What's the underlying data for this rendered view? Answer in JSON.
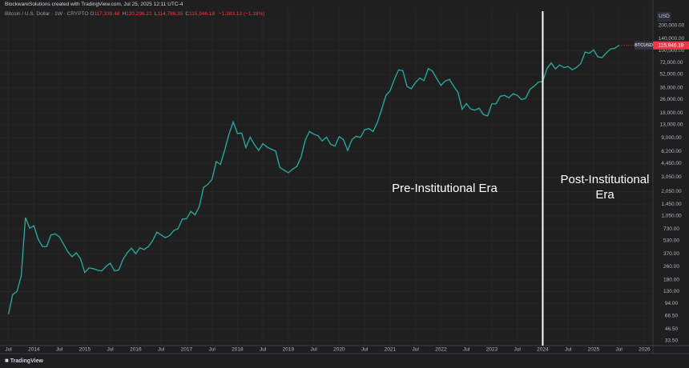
{
  "header": {
    "credit": "BlockwareSolutions created with TradingView.com, Jul 25, 2025 12:11 UTC-4",
    "symbol": "Bitcoin / U.S. Dollar · 1W · CRYPTO",
    "ohlc": [
      {
        "key": "O",
        "value": "117,339.48"
      },
      {
        "key": "H",
        "value": "120,296.21"
      },
      {
        "key": "L",
        "value": "114,786.35"
      },
      {
        "key": "C",
        "value": "115,946.18"
      }
    ],
    "change": "−1,383.13 (−1.18%)",
    "currency": "USD"
  },
  "footer": {
    "brand": "TradingView"
  },
  "chart_data": {
    "type": "line",
    "log_scale": true,
    "grid": true,
    "x": [
      "2013-07",
      "2013-08",
      "2013-09",
      "2013-10",
      "2013-11",
      "2013-12",
      "2014-01",
      "2014-02",
      "2014-03",
      "2014-04",
      "2014-05",
      "2014-06",
      "2014-07",
      "2014-08",
      "2014-09",
      "2014-10",
      "2014-11",
      "2014-12",
      "2015-01",
      "2015-02",
      "2015-03",
      "2015-04",
      "2015-05",
      "2015-06",
      "2015-07",
      "2015-08",
      "2015-09",
      "2015-10",
      "2015-11",
      "2015-12",
      "2016-01",
      "2016-02",
      "2016-03",
      "2016-04",
      "2016-05",
      "2016-06",
      "2016-07",
      "2016-08",
      "2016-09",
      "2016-10",
      "2016-11",
      "2016-12",
      "2017-01",
      "2017-02",
      "2017-03",
      "2017-04",
      "2017-05",
      "2017-06",
      "2017-07",
      "2017-08",
      "2017-09",
      "2017-10",
      "2017-11",
      "2017-12",
      "2018-01",
      "2018-02",
      "2018-03",
      "2018-04",
      "2018-05",
      "2018-06",
      "2018-07",
      "2018-08",
      "2018-09",
      "2018-10",
      "2018-11",
      "2018-12",
      "2019-01",
      "2019-02",
      "2019-03",
      "2019-04",
      "2019-05",
      "2019-06",
      "2019-07",
      "2019-08",
      "2019-09",
      "2019-10",
      "2019-11",
      "2019-12",
      "2020-01",
      "2020-02",
      "2020-03",
      "2020-04",
      "2020-05",
      "2020-06",
      "2020-07",
      "2020-08",
      "2020-09",
      "2020-10",
      "2020-11",
      "2020-12",
      "2021-01",
      "2021-02",
      "2021-03",
      "2021-04",
      "2021-05",
      "2021-06",
      "2021-07",
      "2021-08",
      "2021-09",
      "2021-10",
      "2021-11",
      "2021-12",
      "2022-01",
      "2022-02",
      "2022-03",
      "2022-04",
      "2022-05",
      "2022-06",
      "2022-07",
      "2022-08",
      "2022-09",
      "2022-10",
      "2022-11",
      "2022-12",
      "2023-01",
      "2023-02",
      "2023-03",
      "2023-04",
      "2023-05",
      "2023-06",
      "2023-07",
      "2023-08",
      "2023-09",
      "2023-10",
      "2023-11",
      "2023-12",
      "2024-01",
      "2024-02",
      "2024-03",
      "2024-04",
      "2024-05",
      "2024-06",
      "2024-07",
      "2024-08",
      "2024-09",
      "2024-10",
      "2024-11",
      "2024-12",
      "2025-01",
      "2025-02",
      "2025-03",
      "2025-04",
      "2025-05",
      "2025-06",
      "2025-07"
    ],
    "series": [
      {
        "name": "BTCUSD",
        "color": "#26a69a",
        "values": [
          70,
          120,
          130,
          200,
          1000,
          750,
          800,
          550,
          450,
          450,
          620,
          640,
          590,
          480,
          390,
          340,
          380,
          320,
          220,
          250,
          245,
          235,
          230,
          260,
          285,
          230,
          236,
          315,
          380,
          430,
          370,
          435,
          415,
          450,
          530,
          670,
          620,
          575,
          610,
          700,
          740,
          960,
          970,
          1190,
          1080,
          1350,
          2300,
          2500,
          2870,
          4700,
          4340,
          6450,
          10000,
          14000,
          10200,
          10300,
          6900,
          9200,
          7500,
          6400,
          7700,
          7000,
          6600,
          6300,
          4000,
          3700,
          3450,
          3800,
          4100,
          5300,
          8500,
          10800,
          10000,
          9600,
          8300,
          9200,
          7550,
          7200,
          9350,
          8600,
          6400,
          8600,
          9450,
          9140,
          11300,
          11650,
          10780,
          13800,
          19700,
          29000,
          33100,
          45200,
          58900,
          57700,
          37300,
          35000,
          41500,
          47100,
          43800,
          61300,
          57000,
          46300,
          38500,
          43200,
          45500,
          37700,
          31800,
          19900,
          23300,
          20000,
          19400,
          20500,
          17200,
          16500,
          23100,
          23100,
          28500,
          29200,
          27200,
          30500,
          29200,
          26000,
          27000,
          34500,
          37700,
          42300,
          42600,
          61200,
          71300,
          60700,
          67500,
          62700,
          64600,
          59000,
          63300,
          70300,
          96400,
          93400,
          102400,
          84400,
          82500,
          94200,
          104600,
          107100,
          115946.18
        ]
      }
    ],
    "last_price_label": "115,946.18",
    "xlim": [
      "2013-05",
      "2026-03"
    ],
    "ylim": [
      29.3,
      325000
    ],
    "xticks": [
      {
        "value": "2013-07",
        "label": "Jul"
      },
      {
        "value": "2014-01",
        "label": "2014"
      },
      {
        "value": "2014-07",
        "label": "Jul"
      },
      {
        "value": "2015-01",
        "label": "2015"
      },
      {
        "value": "2015-07",
        "label": "Jul"
      },
      {
        "value": "2016-01",
        "label": "2016"
      },
      {
        "value": "2016-07",
        "label": "Jul"
      },
      {
        "value": "2017-01",
        "label": "2017"
      },
      {
        "value": "2017-07",
        "label": "Jul"
      },
      {
        "value": "2018-01",
        "label": "2018"
      },
      {
        "value": "2018-07",
        "label": "Jul"
      },
      {
        "value": "2019-01",
        "label": "2019"
      },
      {
        "value": "2019-07",
        "label": "Jul"
      },
      {
        "value": "2020-01",
        "label": "2020"
      },
      {
        "value": "2020-07",
        "label": "Jul"
      },
      {
        "value": "2021-01",
        "label": "2021"
      },
      {
        "value": "2021-07",
        "label": "Jul"
      },
      {
        "value": "2022-01",
        "label": "2022"
      },
      {
        "value": "2022-07",
        "label": "Jul"
      },
      {
        "value": "2023-01",
        "label": "2023"
      },
      {
        "value": "2023-07",
        "label": "Jul"
      },
      {
        "value": "2024-01",
        "label": "2024"
      },
      {
        "value": "2024-07",
        "label": "Jul"
      },
      {
        "value": "2025-01",
        "label": "2025"
      },
      {
        "value": "2025-07",
        "label": "Jul"
      },
      {
        "value": "2026-01",
        "label": "2026"
      }
    ],
    "yticks": [
      {
        "value": 33.5,
        "label": "33.50"
      },
      {
        "value": 46.5,
        "label": "46.50"
      },
      {
        "value": 66.5,
        "label": "66.50"
      },
      {
        "value": 94,
        "label": "94.00"
      },
      {
        "value": 130,
        "label": "130.00"
      },
      {
        "value": 180,
        "label": "180.00"
      },
      {
        "value": 260,
        "label": "260.00"
      },
      {
        "value": 370,
        "label": "370.00"
      },
      {
        "value": 530,
        "label": "530.00"
      },
      {
        "value": 730,
        "label": "730.00"
      },
      {
        "value": 1050,
        "label": "1,050.00"
      },
      {
        "value": 1450,
        "label": "1,450.00"
      },
      {
        "value": 2050,
        "label": "2,050.00"
      },
      {
        "value": 3050,
        "label": "3,050.00"
      },
      {
        "value": 4450,
        "label": "4,450.00"
      },
      {
        "value": 6200,
        "label": "6,200.00"
      },
      {
        "value": 9000,
        "label": "9,000.00"
      },
      {
        "value": 13000,
        "label": "13,000.00"
      },
      {
        "value": 18000,
        "label": "18,000.00"
      },
      {
        "value": 26000,
        "label": "26,000.00"
      },
      {
        "value": 36000,
        "label": "36,000.00"
      },
      {
        "value": 52000,
        "label": "52,000.00"
      },
      {
        "value": 72000,
        "label": "72,000.00"
      },
      {
        "value": 100000,
        "label": "100,000.00"
      },
      {
        "value": 140000,
        "label": "140,000.00"
      },
      {
        "value": 200000,
        "label": "200,000.00"
      }
    ],
    "divider": "2024-01",
    "annotations": [
      "Pre-Institutional Era",
      "Post-Institutional Era"
    ]
  }
}
